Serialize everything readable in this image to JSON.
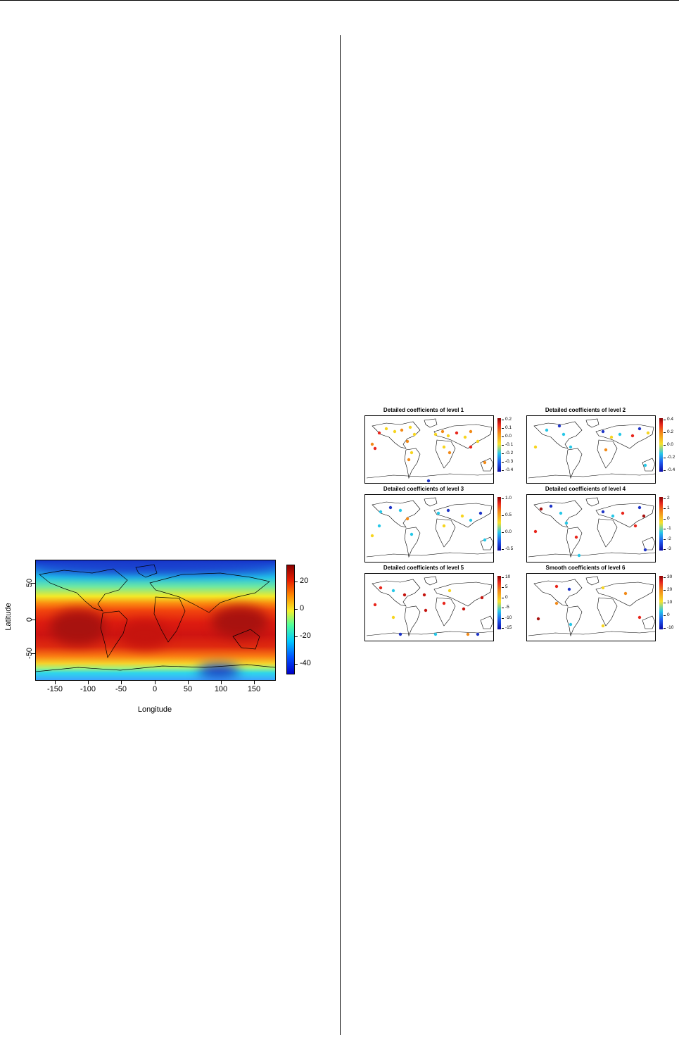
{
  "figure1": {
    "chart_data": {
      "type": "heatmap",
      "title": "",
      "xlabel": "Longitude",
      "ylabel": "Latitude",
      "xlim": [
        -180,
        180
      ],
      "ylim": [
        -90,
        90
      ],
      "x_ticks": [
        "-150",
        "-100",
        "-50",
        "0",
        "50",
        "100",
        "150"
      ],
      "y_ticks": [
        "50",
        "0",
        "-50"
      ],
      "colorbar": {
        "ticks": [
          "20",
          "0",
          "-20",
          "-40"
        ],
        "range": [
          -48,
          31
        ]
      },
      "colormap": [
        "#0000c8",
        "#0050ff",
        "#00c8ff",
        "#50ff9a",
        "#f6f02a",
        "#ff8a00",
        "#e81e00",
        "#8b0000"
      ]
    }
  },
  "figure2": {
    "chart_data": [
      {
        "type": "scatter",
        "title": "Detailed coefficients of level 1",
        "colorbar_ticks": [
          "0.2",
          "0.1",
          "0.0",
          "-0.1",
          "-0.2",
          "-0.3",
          "-0.4"
        ]
      },
      {
        "type": "scatter",
        "title": "Detailed coefficients of level 2",
        "colorbar_ticks": [
          "0.4",
          "0.2",
          "0.0",
          "-0.2",
          "-0.4"
        ]
      },
      {
        "type": "scatter",
        "title": "Detailed coefficients of level 3",
        "colorbar_ticks": [
          "1.0",
          "0.5",
          "0.0",
          "-0.5"
        ]
      },
      {
        "type": "scatter",
        "title": "Detailed coefficients of level 4",
        "colorbar_ticks": [
          "2",
          "1",
          "0",
          "-1",
          "-2",
          "-3"
        ]
      },
      {
        "type": "scatter",
        "title": "Detailed coefficients of level 5",
        "colorbar_ticks": [
          "10",
          "5",
          "0",
          "-5",
          "-10",
          "-15"
        ]
      },
      {
        "type": "scatter",
        "title": "Smooth coefficients of level 6",
        "colorbar_ticks": [
          "30",
          "20",
          "10",
          "0",
          "-10"
        ]
      }
    ]
  }
}
